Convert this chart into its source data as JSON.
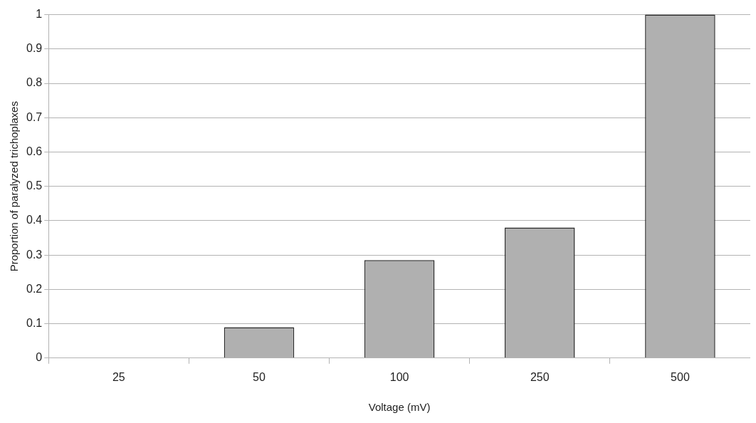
{
  "chart_data": {
    "type": "bar",
    "xlabel": "Voltage (mV)",
    "ylabel": "Proportion of paralyzed trichoplaxes",
    "categories": [
      "25",
      "50",
      "100",
      "250",
      "500"
    ],
    "values": [
      0,
      0.09,
      0.285,
      0.38,
      1
    ],
    "color": "#b0b0b0",
    "ylim": [
      0,
      1
    ],
    "yticks": [
      0,
      0.1,
      0.2,
      0.3,
      0.4,
      0.5,
      0.6,
      0.7,
      0.8,
      0.9,
      1
    ],
    "grid": "y",
    "legend": false
  }
}
